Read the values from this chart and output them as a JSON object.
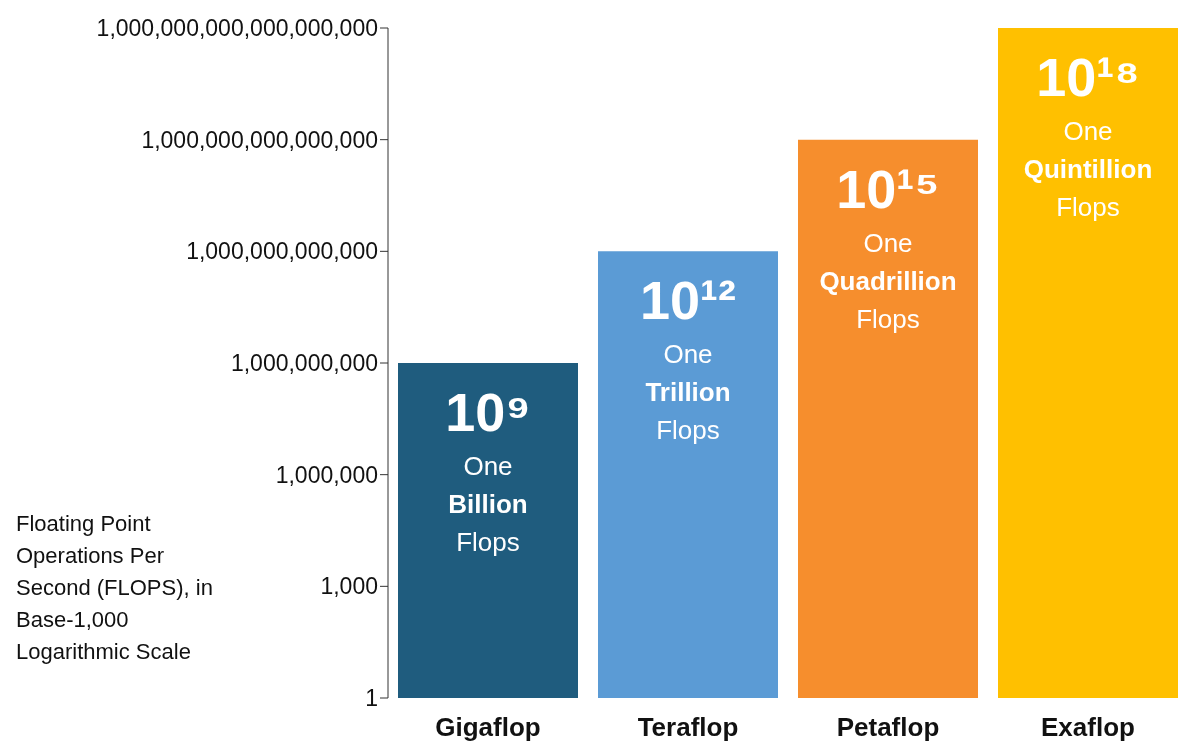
{
  "chart_data": {
    "type": "bar",
    "log": true,
    "grid": false,
    "legend": false,
    "ylabel": "Floating Point Operations Per Second (FLOPS), in Base-1,000 Logarithmic Scale",
    "categories": [
      "Gigaflop",
      "Teraflop",
      "Petaflop",
      "Exaflop"
    ],
    "values": [
      1000000000,
      1000000000000,
      1000000000000000,
      1000000000000000000
    ],
    "colors": [
      "#1f5c7e",
      "#5b9bd5",
      "#f68e2d",
      "#ffc000"
    ],
    "value_labels": [
      "10⁹",
      "10¹²",
      "10¹⁵",
      "10¹⁸"
    ],
    "annotations": [
      "One Billion Flops",
      "One Trillion Flops",
      "One Quadrillion Flops",
      "One Quintillion Flops"
    ],
    "ylim": [
      1,
      1000000000000000000
    ],
    "yticks": [
      {
        "value": 1,
        "label": "1"
      },
      {
        "value": 1000,
        "label": "1,000"
      },
      {
        "value": 1000000,
        "label": "1,000,000"
      },
      {
        "value": 1000000000,
        "label": "1,000,000,000"
      },
      {
        "value": 1000000000000,
        "label": "1,000,000,000,000"
      },
      {
        "value": 1000000000000000,
        "label": "1,000,000,000,000,000"
      },
      {
        "value": 1000000000000000000,
        "label": "1,000,000,000,000,000,000"
      }
    ]
  }
}
